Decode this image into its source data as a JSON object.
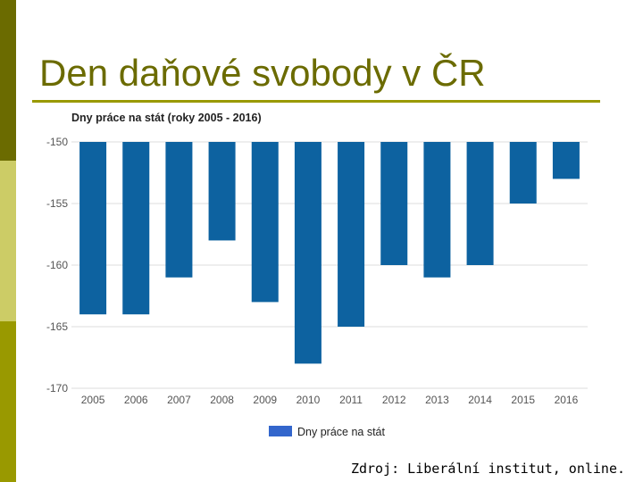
{
  "slide": {
    "title": "Den daňové svobody v ČR",
    "source": "Zdroj: Liberální institut, online."
  },
  "colors": {
    "sidebar": [
      "#6b6b00",
      "#cccc66",
      "#999900"
    ],
    "title_text": "#6b6b00",
    "title_rule": "#999900",
    "bar": "#0d62a0",
    "legend_swatch": "#3366cc",
    "grid": "#dddddd",
    "axis_text": "#555555"
  },
  "chart_data": {
    "type": "bar",
    "title": "Dny práce na stát (roky 2005 - 2016)",
    "categories": [
      "2005",
      "2006",
      "2007",
      "2008",
      "2009",
      "2010",
      "2011",
      "2012",
      "2013",
      "2014",
      "2015",
      "2016"
    ],
    "series": [
      {
        "name": "Dny práce na stát",
        "values": [
          -164,
          -164,
          -161,
          -158,
          -163,
          -168,
          -165,
          -160,
          -161,
          -160,
          -155,
          -153
        ]
      }
    ],
    "ylim": [
      -170,
      -150
    ],
    "yticks": [
      -150,
      -155,
      -160,
      -165,
      -170
    ],
    "grid": true,
    "legend_position": "bottom"
  }
}
